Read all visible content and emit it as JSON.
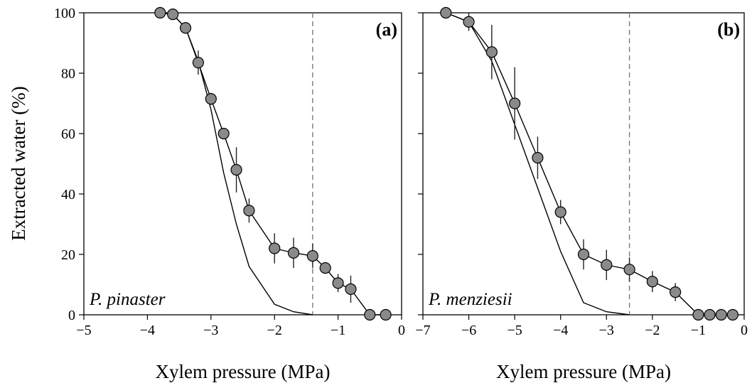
{
  "ylabel": "Extracted water (%)",
  "chart_data": [
    {
      "type": "line",
      "panel_label": "(a)",
      "species": "P. pinaster",
      "xlabel": "Xylem pressure (MPa)",
      "xlim": [
        -5,
        0
      ],
      "ylim": [
        0,
        100
      ],
      "xticks": [
        -5,
        -4,
        -3,
        -2,
        -1,
        0
      ],
      "xtick_labels": [
        "−5",
        "−4",
        "−3",
        "−2",
        "−1",
        "0"
      ],
      "yticks": [
        0,
        20,
        40,
        60,
        80,
        100
      ],
      "ytick_labels": [
        "0",
        "20",
        "40",
        "60",
        "80",
        "100"
      ],
      "threshold_x": -1.4,
      "series": [
        {
          "x": [
            -3.8,
            -3.6,
            -3.4,
            -3.2,
            -3.0,
            -2.8,
            -2.6,
            -2.4,
            -2.0,
            -1.7,
            -1.4,
            -1.2,
            -1.0,
            -0.8,
            -0.5,
            -0.25
          ],
          "y": [
            100,
            99.5,
            95,
            83.5,
            71.5,
            60,
            48,
            34.5,
            22,
            20.5,
            19.5,
            15.5,
            10.5,
            8.5,
            0,
            0
          ],
          "err": [
            0,
            0,
            1.5,
            4,
            2,
            1.5,
            7.5,
            4,
            5,
            5,
            4,
            1.5,
            3,
            4.5,
            0,
            0
          ]
        },
        {
          "x": [
            -3.8,
            -3.6,
            -3.4,
            -3.2,
            -3.0,
            -2.8,
            -2.6,
            -2.4,
            -2.0,
            -1.7,
            -1.4
          ],
          "y": [
            100,
            99.5,
            95,
            84,
            68,
            47,
            30,
            16,
            3.5,
            1,
            0
          ]
        }
      ]
    },
    {
      "type": "line",
      "panel_label": "(b)",
      "species": "P. menziesii",
      "xlabel": "Xylem pressure (MPa)",
      "xlim": [
        -7,
        0
      ],
      "ylim": [
        0,
        100
      ],
      "xticks": [
        -7,
        -6,
        -5,
        -4,
        -3,
        -2,
        -1,
        0
      ],
      "xtick_labels": [
        "−7",
        "−6",
        "−5",
        "−4",
        "−3",
        "−2",
        "−1",
        "0"
      ],
      "yticks": [
        0,
        20,
        40,
        60,
        80,
        100
      ],
      "ytick_labels": [],
      "threshold_x": -2.5,
      "series": [
        {
          "x": [
            -6.5,
            -6.0,
            -5.5,
            -5.0,
            -4.5,
            -4.0,
            -3.5,
            -3.0,
            -2.5,
            -2.0,
            -1.5,
            -1.0,
            -0.75,
            -0.5,
            -0.25
          ],
          "y": [
            100,
            97,
            87,
            70,
            52,
            34,
            20,
            16.5,
            15,
            11,
            7.5,
            0,
            0,
            0,
            0
          ],
          "err": [
            0,
            3,
            9,
            12,
            7,
            4,
            5,
            5,
            4,
            3.5,
            3,
            0,
            0,
            0,
            0
          ]
        },
        {
          "x": [
            -6.5,
            -6.0,
            -5.5,
            -5.0,
            -4.5,
            -4.0,
            -3.5,
            -3.0,
            -2.5
          ],
          "y": [
            100,
            97,
            84,
            63,
            42,
            21,
            4,
            1,
            0
          ]
        }
      ]
    }
  ]
}
